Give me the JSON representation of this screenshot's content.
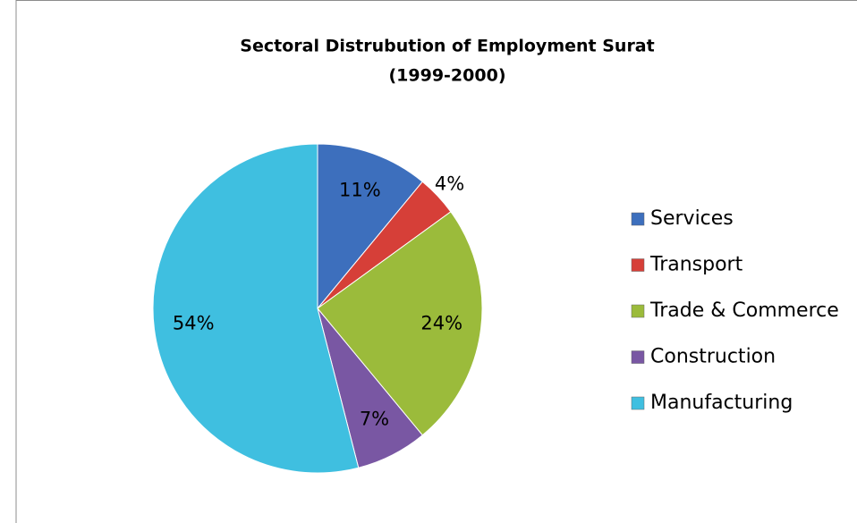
{
  "chart_data": {
    "type": "pie",
    "title": "Sectoral Distrubution of Employment Surat",
    "subtitle": "(1999-2000)",
    "categories": [
      "Services",
      "Transport",
      "Trade & Commerce",
      "Construction",
      "Manufacturing"
    ],
    "values": [
      11,
      4,
      24,
      7,
      54
    ],
    "value_labels": [
      "11%",
      "4%",
      "24%",
      "7%",
      "54%"
    ],
    "colors": [
      "#3d6fbd",
      "#d63f38",
      "#9bbb3b",
      "#7957a3",
      "#3fbfe0"
    ],
    "legend": "right"
  }
}
